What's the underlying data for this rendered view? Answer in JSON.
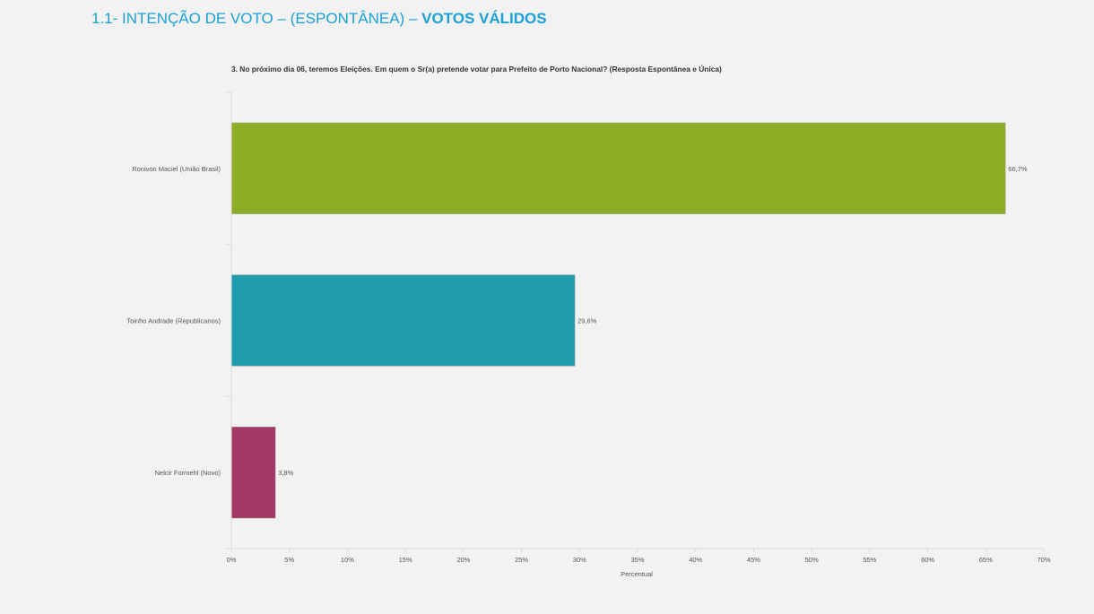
{
  "header": {
    "title_prefix": "1.1- INTENÇÃO DE VOTO – (ESPONTÂNEA) – ",
    "title_emphasis": "VOTOS VÁLIDOS",
    "color": "#1aa0d8"
  },
  "chart_data": {
    "type": "bar",
    "orientation": "horizontal",
    "title": "3. No próximo dia 06, teremos Eleições. Em quem o Sr(a) pretende votar para Prefeito de Porto Nacional? (Resposta Espontânea e Única)",
    "categories": [
      "Ronivon Maciel (União Brasil)",
      "Toinho Andrade (Republicanos)",
      "Nelcir Formehl (Novo)"
    ],
    "values": [
      66.7,
      29.6,
      3.8
    ],
    "value_labels": [
      "66,7%",
      "29,6%",
      "3,8%"
    ],
    "colors": [
      "#8cad25",
      "#219cae",
      "#a33865"
    ],
    "xlabel": "Percentual",
    "ylabel": "",
    "xlim": [
      0,
      70
    ],
    "xticks": [
      0,
      5,
      10,
      15,
      20,
      25,
      30,
      35,
      40,
      45,
      50,
      55,
      60,
      65,
      70
    ],
    "xtick_labels": [
      "0%",
      "5%",
      "10%",
      "15%",
      "20%",
      "25%",
      "30%",
      "35%",
      "40%",
      "45%",
      "50%",
      "55%",
      "60%",
      "65%",
      "70%"
    ],
    "grid": false,
    "legend": "none"
  }
}
